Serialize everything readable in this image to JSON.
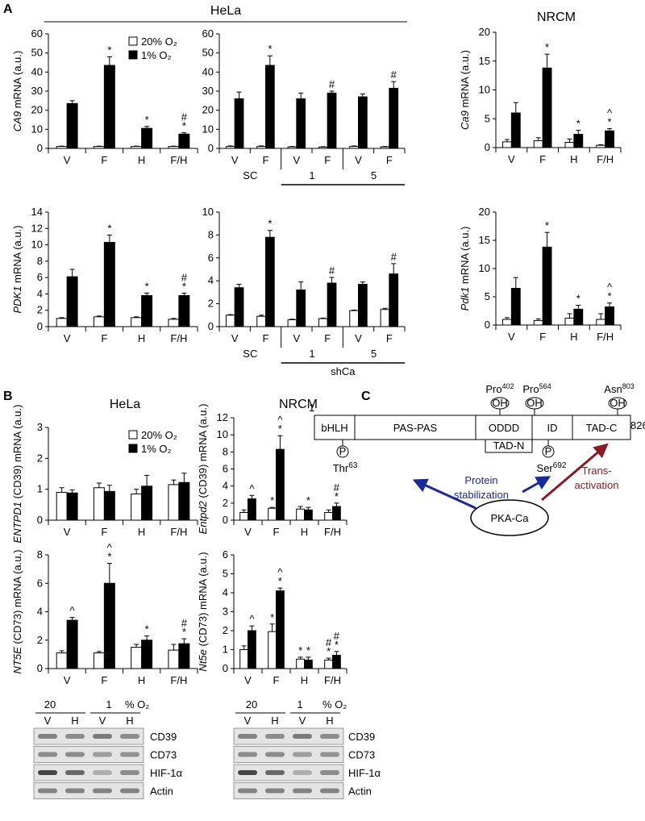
{
  "panels": [
    "A",
    "B",
    "C"
  ],
  "headers": {
    "hela_a": "HeLa",
    "nrcm_a": "NRCM",
    "hela_b": "HeLa",
    "nrcm_b": "NRCM"
  },
  "chart_data": [
    {
      "type": "bar",
      "ylabel": [
        "CA9",
        " mRNA (a.u.)"
      ],
      "categories": [
        "V",
        "F",
        "H",
        "F/H"
      ],
      "series": [
        {
          "name": "20% O₂",
          "color": "#ffffff",
          "values": [
            1,
            1,
            1,
            1
          ],
          "errors": [
            0.2,
            0.2,
            0.2,
            0.2
          ]
        },
        {
          "name": "1% O₂",
          "color": "#000000",
          "values": [
            23.5,
            43.5,
            10.5,
            7.5
          ],
          "errors": [
            1.5,
            4.5,
            1,
            0.7
          ]
        }
      ],
      "ylim": [
        0,
        60
      ],
      "yticks": [
        0,
        10,
        20,
        30,
        40,
        50,
        60
      ],
      "annotations": [
        {
          "category": 1,
          "series": 1,
          "text": "*"
        },
        {
          "category": 2,
          "series": 1,
          "text": "*"
        },
        {
          "category": 3,
          "series": 1,
          "text": "*"
        },
        {
          "category": 3,
          "series": 1,
          "text": "#"
        }
      ],
      "legend": "top-right"
    },
    {
      "type": "bar",
      "categories": [
        "V",
        "F",
        "V",
        "F",
        "V",
        "F"
      ],
      "groups": [
        "SC",
        "1",
        "5"
      ],
      "series": [
        {
          "color": "#ffffff",
          "values": [
            1,
            1,
            0.8,
            0.7,
            1,
            0.8
          ],
          "errors": [
            0.3,
            0.3,
            0.2,
            0.2,
            0.3,
            0.2
          ]
        },
        {
          "color": "#000000",
          "values": [
            26,
            43.5,
            26,
            29,
            27,
            31.5
          ],
          "errors": [
            3.5,
            5,
            3,
            1,
            1.5,
            3.5
          ]
        }
      ],
      "ylim": [
        0,
        60
      ],
      "yticks": [
        0,
        10,
        20,
        30,
        40,
        50,
        60
      ],
      "annotations": [
        {
          "category": 1,
          "series": 1,
          "text": "*"
        },
        {
          "category": 3,
          "series": 1,
          "text": "#"
        },
        {
          "category": 5,
          "series": 1,
          "text": "#"
        }
      ]
    },
    {
      "type": "bar",
      "ylabel": [
        "Ca9",
        " mRNA (a.u.)"
      ],
      "categories": [
        "V",
        "F",
        "H",
        "F/H"
      ],
      "series": [
        {
          "color": "#ffffff",
          "values": [
            1,
            1.2,
            0.9,
            0.4
          ],
          "errors": [
            0.4,
            0.5,
            0.6,
            0.1
          ]
        },
        {
          "color": "#000000",
          "values": [
            6,
            13.8,
            2.3,
            2.9
          ],
          "errors": [
            1.8,
            2.4,
            0.7,
            0.4
          ]
        }
      ],
      "ylim": [
        0,
        20
      ],
      "yticks": [
        0,
        5,
        10,
        15,
        20
      ],
      "annotations": [
        {
          "category": 1,
          "series": 1,
          "text": "*"
        },
        {
          "category": 2,
          "series": 1,
          "text": "*"
        },
        {
          "category": 3,
          "series": 1,
          "text": "*"
        },
        {
          "category": 3,
          "series": 1,
          "text": "^"
        }
      ]
    },
    {
      "type": "bar",
      "ylabel": [
        "PDK1",
        " mRNA (a.u.)"
      ],
      "categories": [
        "V",
        "F",
        "H",
        "F/H"
      ],
      "series": [
        {
          "color": "#ffffff",
          "values": [
            1,
            1.2,
            1.1,
            0.9
          ],
          "errors": [
            0.1,
            0.1,
            0.1,
            0.1
          ]
        },
        {
          "color": "#000000",
          "values": [
            6.1,
            10.3,
            3.8,
            3.8
          ],
          "errors": [
            0.9,
            0.9,
            0.3,
            0.3
          ]
        }
      ],
      "ylim": [
        0,
        14
      ],
      "yticks": [
        0,
        2,
        4,
        6,
        8,
        10,
        12,
        14
      ],
      "annotations": [
        {
          "category": 1,
          "series": 1,
          "text": "*"
        },
        {
          "category": 2,
          "series": 1,
          "text": "*"
        },
        {
          "category": 3,
          "series": 1,
          "text": "*"
        },
        {
          "category": 3,
          "series": 1,
          "text": "#"
        }
      ]
    },
    {
      "type": "bar",
      "categories": [
        "V",
        "F",
        "V",
        "F",
        "V",
        "F"
      ],
      "groups": [
        "SC",
        "1",
        "5"
      ],
      "group_title": "shCa",
      "series": [
        {
          "color": "#ffffff",
          "values": [
            1,
            0.9,
            0.6,
            0.7,
            1.4,
            1.5
          ],
          "errors": [
            0.05,
            0.1,
            0.05,
            0.05,
            0.05,
            0.1
          ]
        },
        {
          "color": "#000000",
          "values": [
            3.4,
            7.8,
            3.2,
            3.8,
            3.7,
            4.6
          ],
          "errors": [
            0.3,
            0.6,
            0.7,
            0.5,
            0.2,
            0.9
          ]
        }
      ],
      "ylim": [
        0,
        10
      ],
      "yticks": [
        0,
        2,
        4,
        6,
        8,
        10
      ],
      "annotations": [
        {
          "category": 1,
          "series": 1,
          "text": "*"
        },
        {
          "category": 3,
          "series": 1,
          "text": "#"
        },
        {
          "category": 5,
          "series": 1,
          "text": "#"
        }
      ]
    },
    {
      "type": "bar",
      "ylabel": [
        "Pdk1",
        " mRNA (a.u.)"
      ],
      "categories": [
        "V",
        "F",
        "H",
        "F/H"
      ],
      "series": [
        {
          "color": "#ffffff",
          "values": [
            1,
            0.8,
            1.2,
            1
          ],
          "errors": [
            0.3,
            0.3,
            0.8,
            1
          ]
        },
        {
          "color": "#000000",
          "values": [
            6.5,
            13.8,
            2.8,
            3.2
          ],
          "errors": [
            1.9,
            2.6,
            0.7,
            0.7
          ]
        }
      ],
      "ylim": [
        0,
        20
      ],
      "yticks": [
        0,
        5,
        10,
        15,
        20
      ],
      "annotations": [
        {
          "category": 1,
          "series": 1,
          "text": "*"
        },
        {
          "category": 2,
          "series": 1,
          "text": "*"
        },
        {
          "category": 3,
          "series": 1,
          "text": "*"
        },
        {
          "category": 3,
          "series": 1,
          "text": "^"
        }
      ]
    },
    {
      "type": "bar",
      "ylabel": [
        "ENTPD1",
        " (CD39)  mRNA (a.u.)"
      ],
      "categories": [
        "V",
        "F",
        "H",
        "F/H"
      ],
      "series": [
        {
          "name": "20% O₂",
          "color": "#ffffff",
          "values": [
            0.9,
            1.05,
            0.85,
            1.15
          ],
          "errors": [
            0.15,
            0.15,
            0.15,
            0.15
          ]
        },
        {
          "name": "1% O₂",
          "color": "#000000",
          "values": [
            0.88,
            0.93,
            1.1,
            1.22
          ],
          "errors": [
            0.1,
            0.2,
            0.35,
            0.3
          ]
        }
      ],
      "ylim": [
        0,
        3
      ],
      "yticks": [
        0,
        1,
        2,
        3
      ],
      "legend": "top-right"
    },
    {
      "type": "bar",
      "ylabel": [
        "Entpd2",
        " (CD39) mRNA (a.u.)"
      ],
      "categories": [
        "V",
        "F",
        "H",
        "F/H"
      ],
      "series": [
        {
          "color": "#ffffff",
          "values": [
            0.9,
            1.4,
            1.3,
            0.9
          ],
          "errors": [
            0.3,
            0.1,
            0.3,
            0.3
          ]
        },
        {
          "color": "#000000",
          "values": [
            2.5,
            8.3,
            1.2,
            1.6
          ],
          "errors": [
            0.4,
            1.6,
            0.3,
            0.4
          ]
        }
      ],
      "ylim": [
        0,
        12
      ],
      "yticks": [
        0,
        2,
        4,
        6,
        8,
        10,
        12
      ],
      "annotations": [
        {
          "category": 0,
          "series": 1,
          "text": "^"
        },
        {
          "category": 1,
          "series": 0,
          "text": "*"
        },
        {
          "category": 1,
          "series": 1,
          "text": "*"
        },
        {
          "category": 1,
          "series": 1,
          "text": "^"
        },
        {
          "category": 2,
          "series": 1,
          "text": "*"
        },
        {
          "category": 3,
          "series": 1,
          "text": "*"
        },
        {
          "category": 3,
          "series": 1,
          "text": "#"
        }
      ]
    },
    {
      "type": "bar",
      "ylabel": [
        "NT5E",
        " (CD73) mRNA (a.u.)"
      ],
      "categories": [
        "V",
        "F",
        "H",
        "F/H"
      ],
      "series": [
        {
          "color": "#ffffff",
          "values": [
            1.1,
            1.1,
            1.5,
            1.3
          ],
          "errors": [
            0.15,
            0.1,
            0.2,
            0.4
          ]
        },
        {
          "color": "#000000",
          "values": [
            3.4,
            6,
            2,
            1.75
          ],
          "errors": [
            0.2,
            1.4,
            0.3,
            0.35
          ]
        }
      ],
      "ylim": [
        0,
        8
      ],
      "yticks": [
        0,
        2,
        4,
        6,
        8
      ],
      "annotations": [
        {
          "category": 0,
          "series": 1,
          "text": "^"
        },
        {
          "category": 1,
          "series": 1,
          "text": "*"
        },
        {
          "category": 1,
          "series": 1,
          "text": "^"
        },
        {
          "category": 2,
          "series": 1,
          "text": "*"
        },
        {
          "category": 3,
          "series": 1,
          "text": "*"
        },
        {
          "category": 3,
          "series": 1,
          "text": "#"
        }
      ]
    },
    {
      "type": "bar",
      "ylabel": [
        "Nt5e",
        " (CD73) mRNA (a.u.)"
      ],
      "categories": [
        "V",
        "F",
        "H",
        "F/H"
      ],
      "series": [
        {
          "color": "#ffffff",
          "values": [
            1,
            1.95,
            0.5,
            0.45
          ],
          "errors": [
            0.2,
            0.4,
            0.1,
            0.1
          ]
        },
        {
          "color": "#000000",
          "values": [
            2,
            4.1,
            0.45,
            0.7
          ],
          "errors": [
            0.25,
            0.15,
            0.15,
            0.2
          ]
        }
      ],
      "ylim": [
        0,
        6
      ],
      "yticks": [
        0,
        1,
        2,
        3,
        4,
        5,
        6
      ],
      "annotations": [
        {
          "category": 0,
          "series": 1,
          "text": "^"
        },
        {
          "category": 1,
          "series": 0,
          "text": "*"
        },
        {
          "category": 1,
          "series": 1,
          "text": "*"
        },
        {
          "category": 1,
          "series": 1,
          "text": "^"
        },
        {
          "category": 2,
          "series": 0,
          "text": "*"
        },
        {
          "category": 2,
          "series": 1,
          "text": "*"
        },
        {
          "category": 3,
          "series": 0,
          "text": "*"
        },
        {
          "category": 3,
          "series": 0,
          "text": "#"
        },
        {
          "category": 3,
          "series": 1,
          "text": "*"
        },
        {
          "category": 3,
          "series": 1,
          "text": "#"
        }
      ]
    }
  ],
  "blots": [
    {
      "conditions": [
        "20",
        "1"
      ],
      "unit": "% O₂",
      "lanes": [
        "V",
        "H",
        "V",
        "H"
      ],
      "proteins": [
        "CD39",
        "CD73",
        "HIF-1α",
        "Actin"
      ]
    },
    {
      "conditions": [
        "20",
        "1"
      ],
      "unit": "% O₂",
      "lanes": [
        "V",
        "H",
        "V",
        "H"
      ],
      "proteins": [
        "CD39",
        "CD73",
        "HIF-1α",
        "Actin"
      ]
    }
  ],
  "diagram": {
    "start": "1",
    "end": "826",
    "domains": [
      "bHLH",
      "PAS-PAS",
      "ODDD",
      "ID",
      "TAD-C"
    ],
    "subdomain": "TAD-N",
    "hydroxylation": [
      {
        "residue": "Pro",
        "position": "402",
        "group": "OH"
      },
      {
        "residue": "Pro",
        "position": "564",
        "group": "OH"
      },
      {
        "residue": "Asn",
        "position": "803",
        "group": "OH"
      }
    ],
    "phosphorylation": [
      {
        "residue": "Thr",
        "position": "63",
        "group": "P"
      },
      {
        "residue": "Ser",
        "position": "692",
        "group": "P"
      }
    ],
    "kinase": "PKA-Ca",
    "effects": [
      [
        "Protein",
        "stabilization"
      ],
      [
        "Trans-",
        "activation"
      ]
    ]
  }
}
